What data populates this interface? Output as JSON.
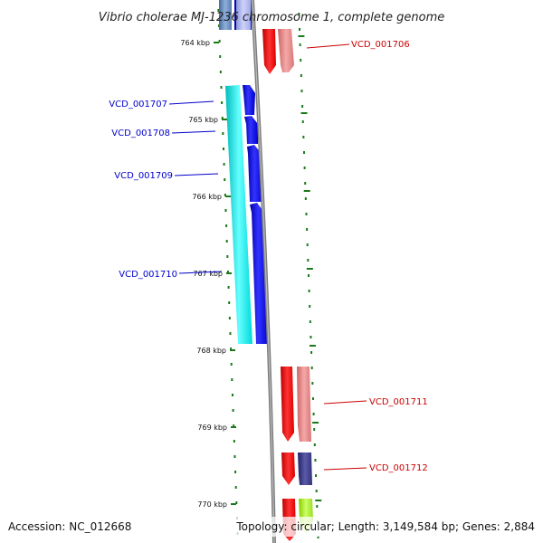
{
  "title": "Vibrio cholerae MJ-1236 chromosome 1, complete genome",
  "accession": "Accession: NC_012668",
  "topology": "Topology: circular; Length: 3,149,584 bp; Genes: 2,884",
  "colors": {
    "backbone": "#8a8a8a",
    "tick": "#1a7a1a",
    "forward_label": "#0000cc",
    "reverse_label": "#cc0000"
  },
  "kbp_ticks": [
    {
      "label": "764 kbp",
      "kbp": 764
    },
    {
      "label": "765 kbp",
      "kbp": 765
    },
    {
      "label": "766 kbp",
      "kbp": 766
    },
    {
      "label": "767 kbp",
      "kbp": 767
    },
    {
      "label": "768 kbp",
      "kbp": 768
    },
    {
      "label": "769 kbp",
      "kbp": 769
    },
    {
      "label": "770 kbp",
      "kbp": 770
    }
  ],
  "gene_labels": [
    {
      "name": "VCD_001706",
      "strand": "reverse"
    },
    {
      "name": "VCD_001707",
      "strand": "forward"
    },
    {
      "name": "VCD_001708",
      "strand": "forward"
    },
    {
      "name": "VCD_001709",
      "strand": "forward"
    },
    {
      "name": "VCD_001710",
      "strand": "forward"
    },
    {
      "name": "VCD_001711",
      "strand": "reverse"
    },
    {
      "name": "VCD_001712",
      "strand": "reverse"
    }
  ]
}
